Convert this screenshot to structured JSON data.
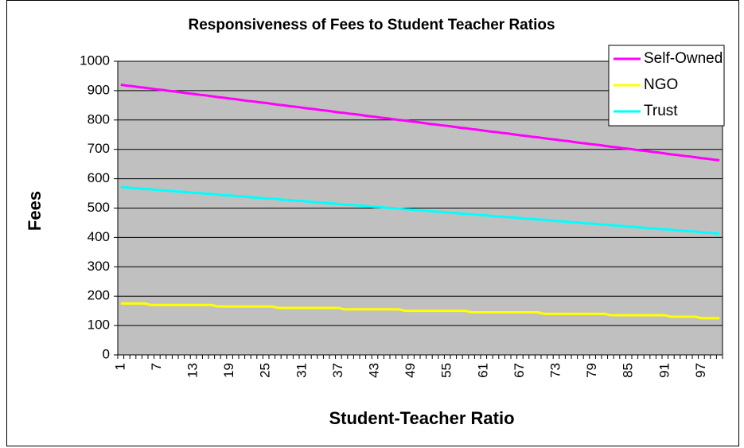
{
  "chart_data": {
    "type": "line",
    "title": "Responsiveness of Fees to Student Teacher Ratios",
    "xlabel": "Student-Teacher Ratio",
    "ylabel": "Fees",
    "categories": [
      1,
      null,
      null,
      null,
      null,
      null,
      7,
      null,
      null,
      null,
      null,
      null,
      13,
      null,
      null,
      null,
      null,
      null,
      19,
      null,
      null,
      null,
      null,
      null,
      25,
      null,
      null,
      null,
      null,
      null,
      31,
      null,
      null,
      null,
      null,
      null,
      37,
      null,
      null,
      null,
      null,
      null,
      43,
      null,
      null,
      null,
      null,
      null,
      49,
      null,
      null,
      null,
      null,
      null,
      55,
      null,
      null,
      null,
      null,
      null,
      61,
      null,
      null,
      null,
      null,
      null,
      67,
      null,
      null,
      null,
      null,
      null,
      73,
      null,
      null,
      null,
      null,
      null,
      79,
      null,
      null,
      null,
      null,
      null,
      85,
      null,
      null,
      null,
      null,
      null,
      91,
      null,
      null,
      null,
      null,
      null,
      97,
      null,
      null,
      null
    ],
    "series": [
      {
        "name": "Self-Owned",
        "color": "#ff00ff",
        "values": [
          920,
          917,
          915,
          912,
          910,
          907,
          904,
          902,
          899,
          897,
          894,
          891,
          889,
          886,
          884,
          881,
          878,
          876,
          873,
          871,
          868,
          865,
          863,
          860,
          858,
          855,
          852,
          850,
          847,
          845,
          842,
          839,
          837,
          834,
          832,
          829,
          826,
          824,
          821,
          819,
          816,
          813,
          811,
          808,
          806,
          803,
          800,
          798,
          795,
          793,
          790,
          787,
          785,
          782,
          780,
          777,
          774,
          772,
          769,
          767,
          764,
          761,
          759,
          756,
          754,
          751,
          748,
          746,
          743,
          741,
          738,
          735,
          733,
          730,
          728,
          725,
          722,
          720,
          717,
          715,
          712,
          709,
          707,
          704,
          702,
          699,
          696,
          694,
          691,
          689,
          686,
          683,
          681,
          678,
          676,
          673,
          670,
          668,
          665,
          663
        ]
      },
      {
        "name": "NGO",
        "color": "#ffff00",
        "values": [
          175,
          175,
          175,
          175,
          175,
          170,
          170,
          170,
          170,
          170,
          170,
          170,
          170,
          170,
          170,
          170,
          165,
          165,
          165,
          165,
          165,
          165,
          165,
          165,
          165,
          165,
          160,
          160,
          160,
          160,
          160,
          160,
          160,
          160,
          160,
          160,
          160,
          155,
          155,
          155,
          155,
          155,
          155,
          155,
          155,
          155,
          155,
          150,
          150,
          150,
          150,
          150,
          150,
          150,
          150,
          150,
          150,
          150,
          145,
          145,
          145,
          145,
          145,
          145,
          145,
          145,
          145,
          145,
          145,
          145,
          140,
          140,
          140,
          140,
          140,
          140,
          140,
          140,
          140,
          140,
          140,
          135,
          135,
          135,
          135,
          135,
          135,
          135,
          135,
          135,
          135,
          130,
          130,
          130,
          130,
          130,
          125,
          125,
          125,
          125
        ]
      },
      {
        "name": "Trust",
        "color": "#00ffff",
        "values": [
          572,
          570,
          568,
          567,
          565,
          564,
          562,
          560,
          559,
          557,
          556,
          554,
          552,
          551,
          549,
          548,
          546,
          544,
          543,
          541,
          540,
          538,
          536,
          535,
          533,
          532,
          530,
          528,
          527,
          525,
          524,
          522,
          520,
          519,
          517,
          516,
          514,
          512,
          511,
          509,
          508,
          506,
          504,
          503,
          501,
          500,
          498,
          496,
          495,
          493,
          492,
          490,
          488,
          487,
          485,
          484,
          482,
          480,
          479,
          477,
          476,
          474,
          472,
          471,
          469,
          468,
          466,
          464,
          463,
          461,
          460,
          458,
          456,
          455,
          453,
          452,
          450,
          448,
          447,
          445,
          444,
          442,
          440,
          439,
          437,
          436,
          434,
          432,
          431,
          429,
          428,
          426,
          424,
          423,
          421,
          420,
          418,
          416,
          415,
          413
        ]
      }
    ],
    "ylim": [
      0,
      1000
    ],
    "yticks": [
      0,
      100,
      200,
      300,
      400,
      500,
      600,
      700,
      800,
      900,
      1000
    ],
    "grid": true,
    "legend": "top-right",
    "plot_background": "#c0c0c0"
  }
}
